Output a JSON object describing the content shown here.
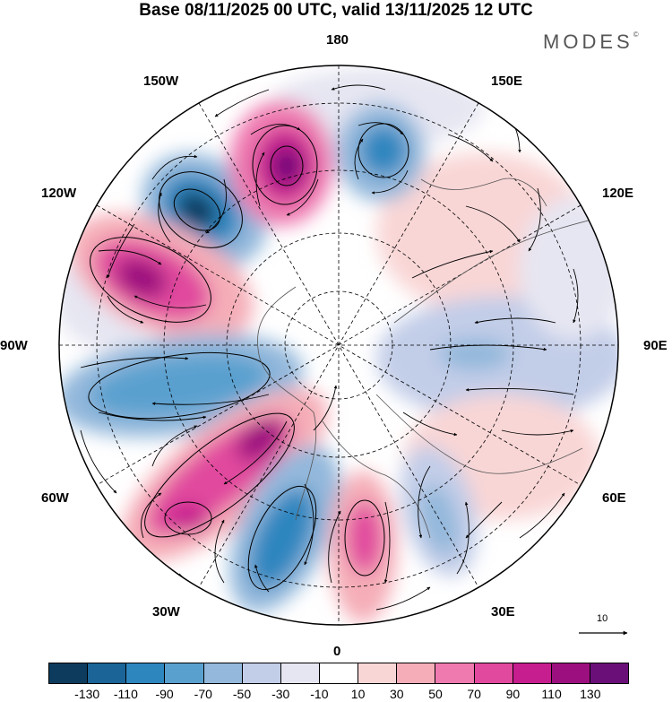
{
  "title": "Base 08/11/2025 00 UTC, valid 13/11/2025 12 UTC",
  "brand": "MODES",
  "brand_mark": "©",
  "longitude_labels": {
    "n180": "180",
    "e150": "150E",
    "e120": "120E",
    "e90": "90E",
    "e60": "60E",
    "e30": "30E",
    "s0": "0",
    "w30": "30W",
    "w60": "60W",
    "w90": "90W",
    "w120": "120W",
    "w150": "150W"
  },
  "reference_vector": "10",
  "colorbar": {
    "colors": [
      "#0d3b5e",
      "#1a6497",
      "#2e86bf",
      "#5aa0cf",
      "#93b8db",
      "#c2cde8",
      "#e6e6f2",
      "#ffffff",
      "#f9d6d6",
      "#f5aeb8",
      "#ef7ab0",
      "#e1499e",
      "#c71e8f",
      "#9c0f7e",
      "#6a0f78"
    ],
    "ticks": [
      "-130",
      "-110",
      "-90",
      "-70",
      "-50",
      "-30",
      "-10",
      "10",
      "30",
      "50",
      "70",
      "90",
      "110",
      "130"
    ]
  }
}
